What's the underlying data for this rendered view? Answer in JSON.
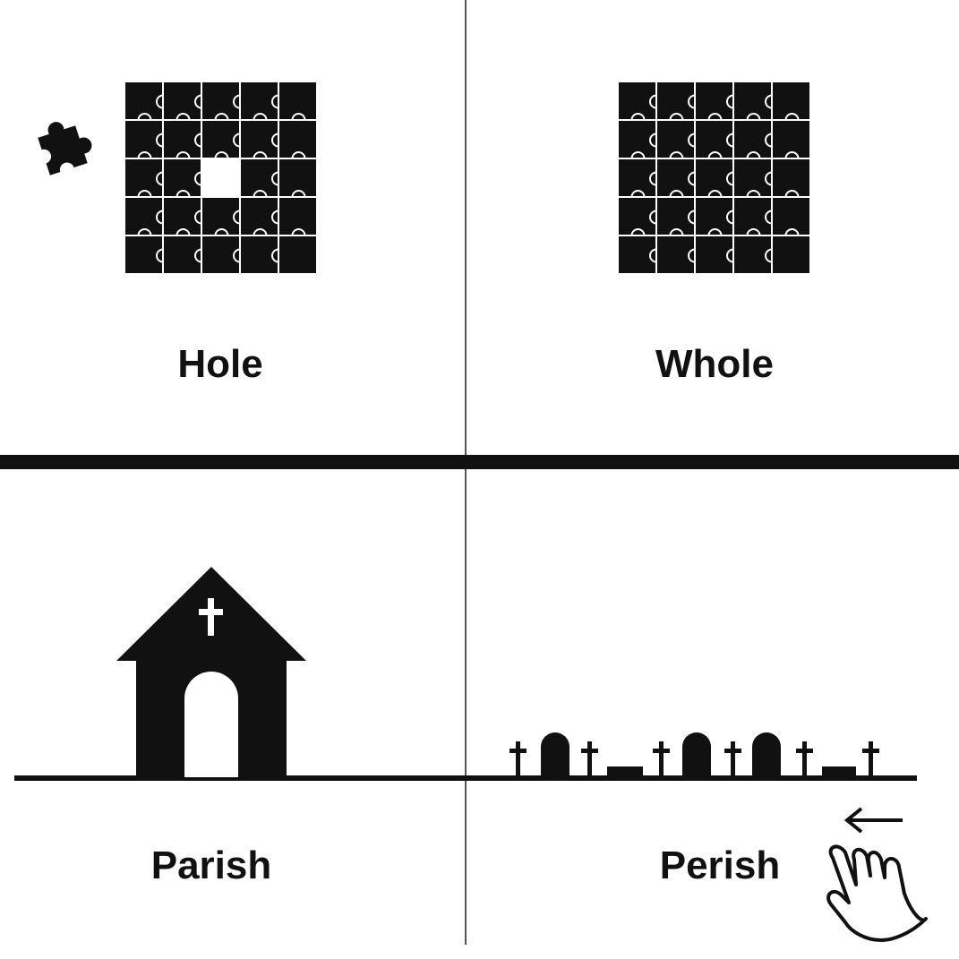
{
  "panels": {
    "top_left": {
      "caption": "Hole"
    },
    "top_right": {
      "caption": "Whole"
    },
    "bottom_left": {
      "caption": "Parish"
    },
    "bottom_right": {
      "caption": "Perish"
    }
  },
  "icons": {
    "puzzle_with_hole": "puzzle-grid-missing-piece",
    "loose_piece": "puzzle-piece",
    "complete_puzzle": "puzzle-grid-complete",
    "church": "church-with-cross",
    "graveyard": "graveyard-tombstones-crosses",
    "swipe_hint": "hand-swipe-left"
  },
  "colors": {
    "ink": "#111111",
    "background": "#ffffff",
    "divider": "#555555"
  }
}
